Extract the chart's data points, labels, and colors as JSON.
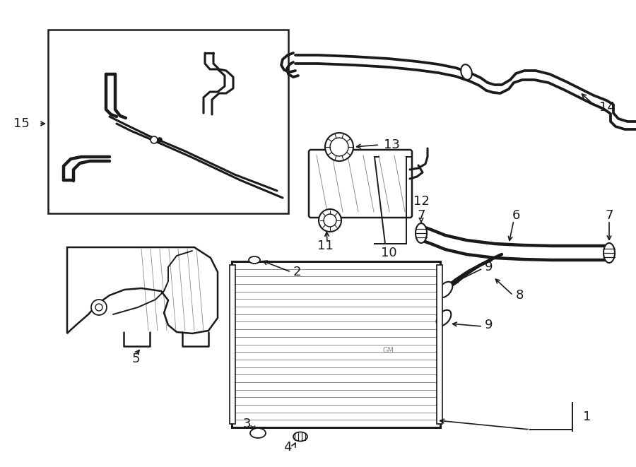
{
  "bg_color": "#ffffff",
  "lc": "#1a1a1a",
  "fig_w": 9.0,
  "fig_h": 6.61,
  "dpi": 100,
  "lw_hose": 2.2,
  "lw_thin": 1.4,
  "lw_frame": 1.8,
  "fs_label": 13
}
